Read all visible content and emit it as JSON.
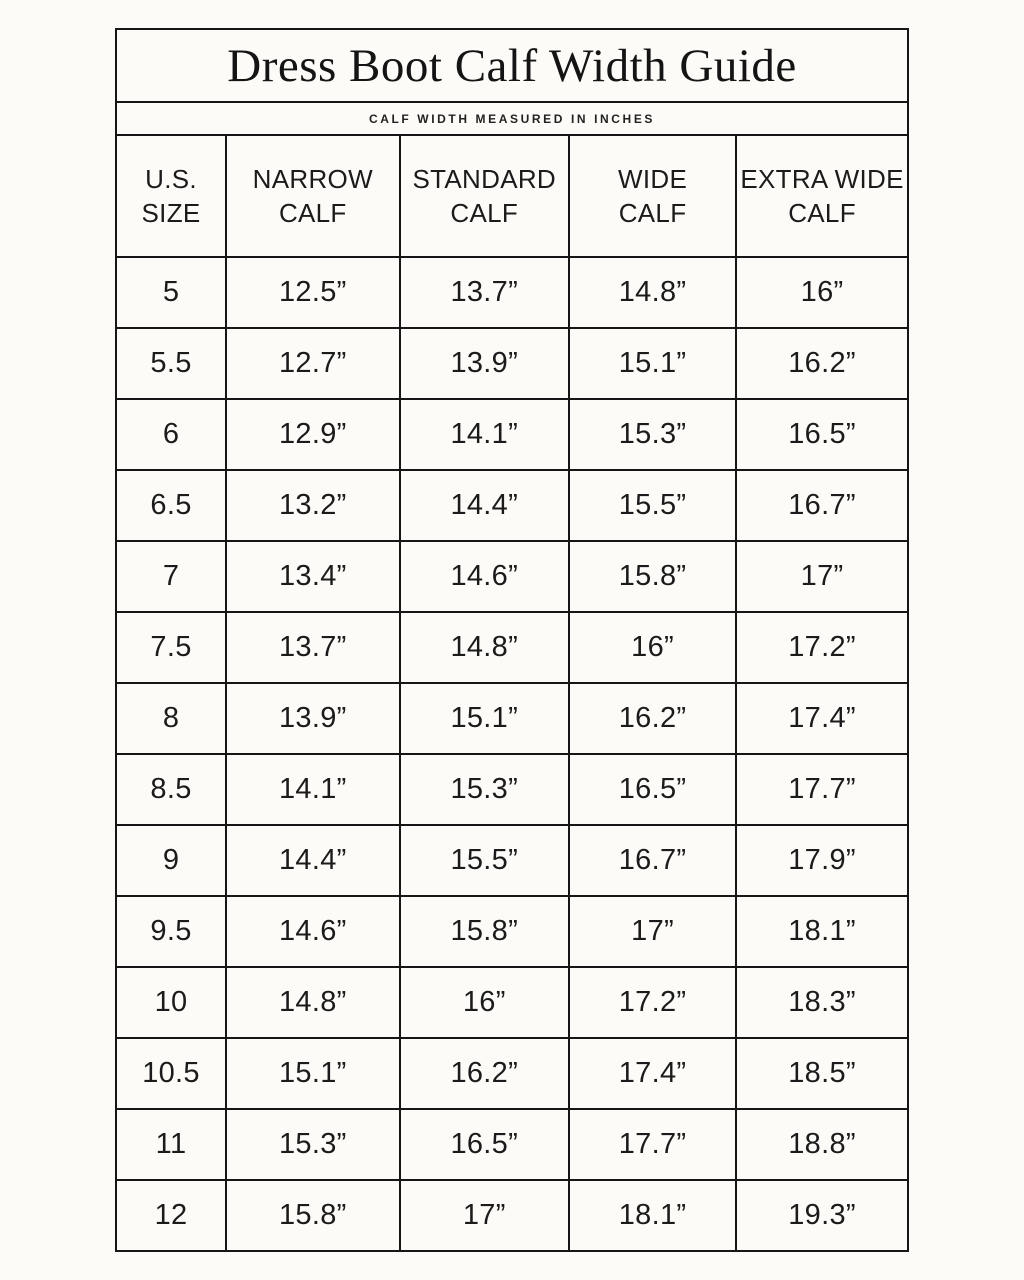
{
  "page": {
    "background_color": "#fcfbf8",
    "border_color": "#161616",
    "text_color": "#1b1b1b"
  },
  "guide": {
    "title": "Dress Boot Calf Width Guide",
    "subtitle": "CALF WIDTH MEASURED IN INCHES"
  },
  "table": {
    "headers": [
      {
        "line1": "U.S.",
        "line2": "SIZE"
      },
      {
        "line1": "NARROW",
        "line2": "CALF"
      },
      {
        "line1": "STANDARD",
        "line2": "CALF"
      },
      {
        "line1": "WIDE",
        "line2": "CALF"
      },
      {
        "line1": "EXTRA WIDE",
        "line2": "CALF"
      }
    ],
    "rows": [
      [
        "5",
        "12.5”",
        "13.7”",
        "14.8”",
        "16”"
      ],
      [
        "5.5",
        "12.7”",
        "13.9”",
        "15.1”",
        "16.2”"
      ],
      [
        "6",
        "12.9”",
        "14.1”",
        "15.3”",
        "16.5”"
      ],
      [
        "6.5",
        "13.2”",
        "14.4”",
        "15.5”",
        "16.7”"
      ],
      [
        "7",
        "13.4”",
        "14.6”",
        "15.8”",
        "17”"
      ],
      [
        "7.5",
        "13.7”",
        "14.8”",
        "16”",
        "17.2”"
      ],
      [
        "8",
        "13.9”",
        "15.1”",
        "16.2”",
        "17.4”"
      ],
      [
        "8.5",
        "14.1”",
        "15.3”",
        "16.5”",
        "17.7”"
      ],
      [
        "9",
        "14.4”",
        "15.5”",
        "16.7”",
        "17.9”"
      ],
      [
        "9.5",
        "14.6”",
        "15.8”",
        "17”",
        "18.1”"
      ],
      [
        "10",
        "14.8”",
        "16”",
        "17.2”",
        "18.3”"
      ],
      [
        "10.5",
        "15.1”",
        "16.2”",
        "17.4”",
        "18.5”"
      ],
      [
        "11",
        "15.3”",
        "16.5”",
        "17.7”",
        "18.8”"
      ],
      [
        "12",
        "15.8”",
        "17”",
        "18.1”",
        "19.3”"
      ]
    ]
  },
  "chart_data": {
    "type": "table",
    "title": "Dress Boot Calf Width Guide",
    "subtitle": "CALF WIDTH MEASURED IN INCHES",
    "units": "inches",
    "columns": [
      "U.S. SIZE",
      "NARROW CALF",
      "STANDARD CALF",
      "WIDE CALF",
      "EXTRA WIDE CALF"
    ],
    "rows": [
      [
        5,
        12.5,
        13.7,
        14.8,
        16
      ],
      [
        5.5,
        12.7,
        13.9,
        15.1,
        16.2
      ],
      [
        6,
        12.9,
        14.1,
        15.3,
        16.5
      ],
      [
        6.5,
        13.2,
        14.4,
        15.5,
        16.7
      ],
      [
        7,
        13.4,
        14.6,
        15.8,
        17
      ],
      [
        7.5,
        13.7,
        14.8,
        16,
        17.2
      ],
      [
        8,
        13.9,
        15.1,
        16.2,
        17.4
      ],
      [
        8.5,
        14.1,
        15.3,
        16.5,
        17.7
      ],
      [
        9,
        14.4,
        15.5,
        16.7,
        17.9
      ],
      [
        9.5,
        14.6,
        15.8,
        17,
        18.1
      ],
      [
        10,
        14.8,
        16,
        17.2,
        18.3
      ],
      [
        10.5,
        15.1,
        16.2,
        17.4,
        18.5
      ],
      [
        11,
        15.3,
        16.5,
        17.7,
        18.8
      ],
      [
        12,
        15.8,
        17,
        18.1,
        19.3
      ]
    ]
  }
}
